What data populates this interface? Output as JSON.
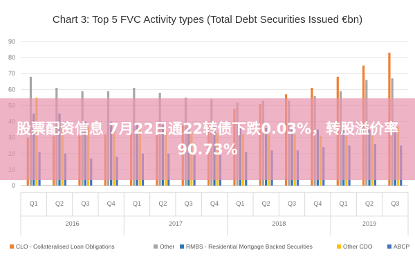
{
  "chart_data": {
    "type": "bar",
    "title": "Chart 3: Top 5 FVC Activity types (Total Debt Securities Issued €bn)",
    "categories": [
      "Q1",
      "Q2",
      "Q3",
      "Q4",
      "Q1",
      "Q2",
      "Q3",
      "Q4",
      "Q1",
      "Q2",
      "Q3",
      "Q4",
      "Q1",
      "Q2",
      "Q3"
    ],
    "year_groups": [
      {
        "label": "2016",
        "count": 4
      },
      {
        "label": "2017",
        "count": 4
      },
      {
        "label": "2018",
        "count": 4
      },
      {
        "label": "2019",
        "count": 3
      }
    ],
    "ylim": [
      0,
      90
    ],
    "yticks": [
      0,
      10,
      20,
      30,
      40,
      50,
      60,
      70,
      80,
      90
    ],
    "grid": true,
    "legend_position": "bottom",
    "series": [
      {
        "name": "CLO - Collateralised Loan Obligations",
        "color": "#f07f2e",
        "values": [
          30,
          31,
          32,
          32,
          33,
          35,
          38,
          40,
          48,
          51,
          57,
          61,
          68,
          75,
          83
        ]
      },
      {
        "name": "Other",
        "color": "#a6a6a6",
        "values": [
          68,
          61,
          59,
          59,
          61,
          58,
          55,
          54,
          52,
          53,
          53,
          56,
          59,
          66,
          67
        ]
      },
      {
        "name": "RMBS - Residential Mortgage Backed Securities",
        "color": "#2e75b6",
        "values": [
          45,
          45,
          40,
          40,
          39,
          38,
          37,
          37,
          36,
          36,
          36,
          35,
          35,
          35,
          34
        ]
      },
      {
        "name": "Other CDO",
        "color": "#ffc000",
        "values": [
          55,
          38,
          37,
          36,
          35,
          34,
          33,
          33,
          32,
          32,
          32,
          31,
          31,
          34,
          37
        ]
      },
      {
        "name": "ABCP",
        "color": "#4472c4",
        "values": [
          21,
          20,
          17,
          18,
          20,
          20,
          19,
          19,
          21,
          22,
          22,
          24,
          25,
          26,
          25
        ]
      }
    ]
  },
  "overlay": {
    "text": "股票配资信息 7月22日通22转债下跌0.03%，转股溢价率90.73%"
  }
}
